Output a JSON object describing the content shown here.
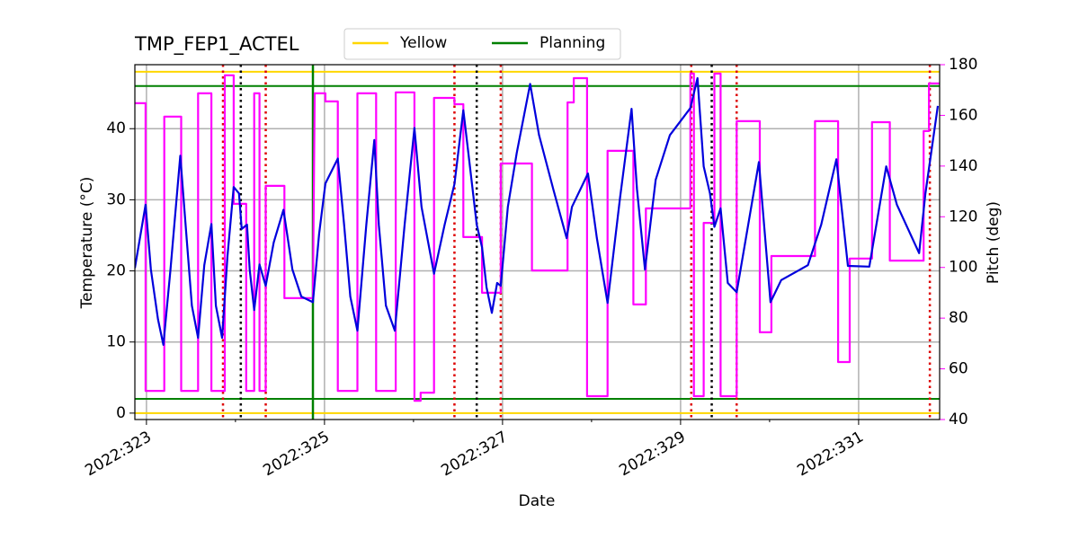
{
  "chart_data": {
    "type": "line",
    "title": "TMP_FEP1_ACTEL",
    "xlabel": "Date",
    "ylabel": "Temperature (°C)",
    "y2label": "Pitch (deg)",
    "xlim": [
      322.87,
      331.91
    ],
    "ylim": [
      -0.9,
      49
    ],
    "y2lim": [
      40,
      180
    ],
    "xticks": [
      {
        "value": 323,
        "label": "2022:323"
      },
      {
        "value": 325,
        "label": "2022:325"
      },
      {
        "value": 327,
        "label": "2022:327"
      },
      {
        "value": 329,
        "label": "2022:329"
      },
      {
        "value": 331,
        "label": "2022:331"
      }
    ],
    "xminorticks": [
      324,
      326,
      328,
      330
    ],
    "yticks": [
      0,
      10,
      20,
      30,
      40
    ],
    "y2ticks": [
      40,
      60,
      80,
      100,
      120,
      140,
      160,
      180
    ],
    "y2color": "#ff00ff",
    "grid": true,
    "legend": "top",
    "series": [
      {
        "color": "#0000dd",
        "x": [
          322.87,
          322.99,
          323.05,
          323.13,
          323.19,
          323.27,
          323.38,
          323.44,
          323.51,
          323.58,
          323.65,
          323.73,
          323.78,
          323.85,
          323.91,
          323.98,
          324.04,
          324.07,
          324.13,
          324.16,
          324.21,
          324.27,
          324.34,
          324.43,
          324.54,
          324.64,
          324.74,
          324.87,
          324.94,
          325.01,
          325.15,
          325.22,
          325.29,
          325.37,
          325.47,
          325.56,
          325.61,
          325.69,
          325.79,
          325.9,
          326.01,
          326.09,
          326.23,
          326.35,
          326.46,
          326.56,
          326.61,
          326.71,
          326.77,
          326.82,
          326.88,
          326.94,
          326.98,
          327.06,
          327.16,
          327.31,
          327.41,
          327.57,
          327.72,
          327.78,
          327.96,
          328.06,
          328.18,
          328.32,
          328.45,
          328.51,
          328.6,
          328.72,
          328.88,
          329.11,
          329.19,
          329.26,
          329.33,
          329.38,
          329.45,
          329.53,
          329.63,
          329.88,
          330.01,
          330.13,
          330.43,
          330.58,
          330.75,
          330.88,
          331.12,
          331.31,
          331.43,
          331.68,
          331.75,
          331.89
        ],
        "values": [
          20.4,
          29.3,
          20.2,
          13.2,
          9.6,
          20.2,
          36.2,
          26.5,
          15.1,
          10.6,
          20.8,
          26.6,
          15.1,
          10.6,
          22.1,
          31.8,
          30.9,
          25.9,
          26.5,
          20.2,
          14.5,
          20.9,
          17.9,
          24.0,
          28.6,
          20.2,
          16.4,
          15.6,
          25.2,
          32.3,
          35.8,
          26.5,
          16.4,
          11.6,
          26.5,
          38.4,
          26.5,
          15.1,
          11.6,
          26.5,
          40.1,
          29.0,
          19.6,
          26.5,
          32.2,
          42.6,
          37.2,
          26.5,
          23.3,
          17.7,
          14.1,
          18.3,
          17.9,
          29.0,
          36.6,
          46.3,
          39.1,
          31.5,
          24.6,
          29.0,
          33.7,
          24.6,
          15.5,
          30.3,
          42.8,
          31.5,
          20.2,
          32.8,
          39.1,
          42.9,
          47.1,
          34.7,
          30.9,
          26.2,
          28.8,
          18.3,
          17.0,
          35.3,
          15.6,
          18.7,
          20.8,
          26.5,
          35.7,
          20.7,
          20.6,
          34.7,
          29.3,
          22.5,
          30.9,
          43.2
        ]
      },
      {
        "color": "#ff00ff",
        "axis": "y2",
        "x": [
          322.87,
          322.99,
          322.99,
          323.2,
          323.2,
          323.39,
          323.39,
          323.58,
          323.58,
          323.73,
          323.73,
          323.88,
          323.88,
          323.98,
          323.98,
          324.12,
          324.12,
          324.21,
          324.21,
          324.27,
          324.27,
          324.34,
          324.34,
          324.55,
          324.55,
          324.87,
          324.89,
          325.01,
          325.01,
          325.15,
          325.15,
          325.37,
          325.37,
          325.58,
          325.58,
          325.8,
          325.8,
          326.01,
          326.01,
          326.08,
          326.08,
          326.23,
          326.23,
          326.46,
          326.46,
          326.56,
          326.56,
          326.77,
          326.77,
          326.98,
          326.98,
          327.33,
          327.33,
          327.73,
          327.73,
          327.8,
          327.8,
          327.95,
          327.95,
          328.18,
          328.18,
          328.47,
          328.47,
          328.61,
          328.61,
          329.11,
          329.11,
          329.15,
          329.15,
          329.26,
          329.26,
          329.38,
          329.38,
          329.45,
          329.45,
          329.63,
          329.63,
          329.89,
          329.89,
          330.02,
          330.02,
          330.51,
          330.51,
          330.77,
          330.77,
          330.9,
          330.9,
          331.15,
          331.15,
          331.35,
          331.35,
          331.73,
          331.73,
          331.79,
          331.79,
          331.91
        ],
        "values": [
          164.8,
          164.8,
          51.3,
          51.3,
          159.5,
          159.5,
          51.3,
          51.3,
          168.7,
          168.7,
          51.3,
          51.3,
          175.8,
          175.8,
          125.1,
          125.1,
          51.3,
          51.3,
          168.7,
          168.7,
          51.3,
          51.3,
          132.2,
          132.2,
          87.9,
          87.9,
          168.7,
          168.7,
          165.5,
          165.5,
          51.3,
          51.3,
          168.7,
          168.7,
          51.3,
          51.3,
          169.1,
          169.1,
          47.4,
          47.4,
          50.6,
          50.6,
          166.9,
          166.9,
          164.4,
          164.4,
          112,
          112,
          90,
          90,
          141,
          141,
          98.8,
          98.8,
          165.1,
          165.1,
          174.7,
          174.7,
          49.2,
          49.2,
          146,
          146,
          85.4,
          85.4,
          123.3,
          123.3,
          176.5,
          176.5,
          49.2,
          49.2,
          117.6,
          117.6,
          176.5,
          176.5,
          49.2,
          49.2,
          157.7,
          157.7,
          74.4,
          74.4,
          104.5,
          104.5,
          157.7,
          157.7,
          62.7,
          62.7,
          103.5,
          103.5,
          157.3,
          157.3,
          102.7,
          102.7,
          153.8,
          153.8,
          172.6,
          172.6
        ]
      }
    ],
    "limit_lines": [
      {
        "name": "Yellow",
        "color": "#ffd700",
        "values": [
          48,
          0
        ]
      },
      {
        "name": "Planning",
        "color": "#008000",
        "values": [
          46,
          2
        ]
      }
    ],
    "vlines": [
      {
        "x": 324.87,
        "color": "#008000",
        "style": "solid"
      },
      {
        "x": 323.86,
        "color": "#dd0000",
        "style": "dotted"
      },
      {
        "x": 324.34,
        "color": "#dd0000",
        "style": "dotted"
      },
      {
        "x": 326.46,
        "color": "#dd0000",
        "style": "dotted"
      },
      {
        "x": 326.98,
        "color": "#dd0000",
        "style": "dotted"
      },
      {
        "x": 329.12,
        "color": "#dd0000",
        "style": "dotted"
      },
      {
        "x": 329.63,
        "color": "#dd0000",
        "style": "dotted"
      },
      {
        "x": 331.8,
        "color": "#dd0000",
        "style": "dotted"
      },
      {
        "x": 324.06,
        "color": "#000000",
        "style": "dotted"
      },
      {
        "x": 326.71,
        "color": "#000000",
        "style": "dotted"
      },
      {
        "x": 329.35,
        "color": "#000000",
        "style": "dotted"
      }
    ]
  }
}
